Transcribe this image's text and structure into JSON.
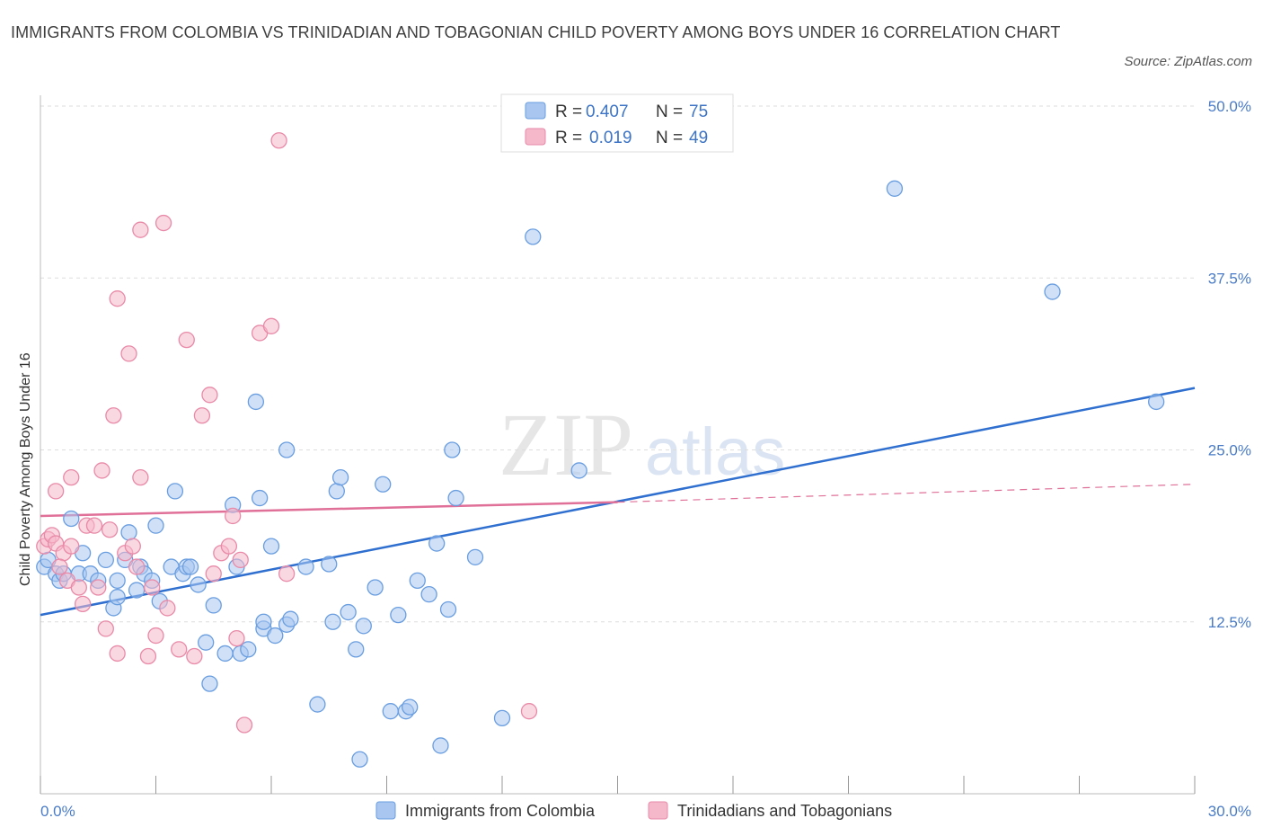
{
  "title": "IMMIGRANTS FROM COLOMBIA VS TRINIDADIAN AND TOBAGONIAN CHILD POVERTY AMONG BOYS UNDER 16 CORRELATION CHART",
  "source": "Source: ZipAtlas.com",
  "watermark": {
    "zip": "ZIP",
    "atlas": "atlas"
  },
  "legend_top": {
    "series1": {
      "r_label": "R = ",
      "r_value": "0.407",
      "n_label": "N = ",
      "n_value": "75"
    },
    "series2": {
      "r_label": "R = ",
      "r_value": "0.019",
      "n_label": "N = ",
      "n_value": "49"
    }
  },
  "colors": {
    "blue_fill": "#a8c6f0",
    "blue_stroke": "#6a9ee0",
    "blue_line": "#2f6fcf",
    "pink_fill": "#f5b8cb",
    "pink_stroke": "#e88aa8",
    "pink_line": "#e07098",
    "grid": "#dddddd",
    "tick_text": "#4a7cc7"
  },
  "chart_data": {
    "type": "scatter",
    "title": "IMMIGRANTS FROM COLOMBIA VS TRINIDADIAN AND TOBAGONIAN CHILD POVERTY AMONG BOYS UNDER 16 CORRELATION CHART",
    "xlabel": "",
    "ylabel": "Child Poverty Among Boys Under 16",
    "xlim": [
      0,
      30
    ],
    "ylim": [
      0,
      50
    ],
    "x_tick_labels": [
      "0.0%",
      "30.0%"
    ],
    "y_tick_labels": [
      "12.5%",
      "25.0%",
      "37.5%",
      "50.0%"
    ],
    "y_ticks": [
      12.5,
      25,
      37.5,
      50
    ],
    "grid": true,
    "legend_placement": "top-center",
    "series": [
      {
        "name": "Immigrants from Colombia",
        "trend": {
          "x": [
            0,
            30
          ],
          "y": [
            13.0,
            29.5
          ]
        },
        "points": [
          [
            0.1,
            16.5
          ],
          [
            0.4,
            16.0
          ],
          [
            0.5,
            15.5
          ],
          [
            0.6,
            16.0
          ],
          [
            0.8,
            20.0
          ],
          [
            1.0,
            16.0
          ],
          [
            1.1,
            17.5
          ],
          [
            1.3,
            16.0
          ],
          [
            1.5,
            15.5
          ],
          [
            1.7,
            17.0
          ],
          [
            1.9,
            13.5
          ],
          [
            2.0,
            15.5
          ],
          [
            2.2,
            17.0
          ],
          [
            2.3,
            19.0
          ],
          [
            2.5,
            14.8
          ],
          [
            2.6,
            16.5
          ],
          [
            2.7,
            16.0
          ],
          [
            2.9,
            15.5
          ],
          [
            3.0,
            19.5
          ],
          [
            3.1,
            14.0
          ],
          [
            3.4,
            16.5
          ],
          [
            3.5,
            22.0
          ],
          [
            3.7,
            16.0
          ],
          [
            3.8,
            16.5
          ],
          [
            3.9,
            16.5
          ],
          [
            4.1,
            15.2
          ],
          [
            4.3,
            11.0
          ],
          [
            4.4,
            8.0
          ],
          [
            4.5,
            13.7
          ],
          [
            4.8,
            10.2
          ],
          [
            5.0,
            21.0
          ],
          [
            5.1,
            16.5
          ],
          [
            5.2,
            10.2
          ],
          [
            5.4,
            10.5
          ],
          [
            5.6,
            28.5
          ],
          [
            5.7,
            21.5
          ],
          [
            5.8,
            12.0
          ],
          [
            6.0,
            18.0
          ],
          [
            6.1,
            11.5
          ],
          [
            6.4,
            25.0
          ],
          [
            6.4,
            12.3
          ],
          [
            6.5,
            12.7
          ],
          [
            6.9,
            16.5
          ],
          [
            7.2,
            6.5
          ],
          [
            7.5,
            16.7
          ],
          [
            7.6,
            12.5
          ],
          [
            7.7,
            22.0
          ],
          [
            7.8,
            23.0
          ],
          [
            8.0,
            13.2
          ],
          [
            8.2,
            10.5
          ],
          [
            8.3,
            2.5
          ],
          [
            8.4,
            12.2
          ],
          [
            8.7,
            15.0
          ],
          [
            8.9,
            22.5
          ],
          [
            9.1,
            6.0
          ],
          [
            9.3,
            13.0
          ],
          [
            9.5,
            6.0
          ],
          [
            9.6,
            6.3
          ],
          [
            9.8,
            15.5
          ],
          [
            10.1,
            14.5
          ],
          [
            10.3,
            18.2
          ],
          [
            10.4,
            3.5
          ],
          [
            10.6,
            13.4
          ],
          [
            10.7,
            25.0
          ],
          [
            10.8,
            21.5
          ],
          [
            11.3,
            17.2
          ],
          [
            12.0,
            5.5
          ],
          [
            12.8,
            40.5
          ],
          [
            14.0,
            23.5
          ],
          [
            22.2,
            44.0
          ],
          [
            26.3,
            36.5
          ],
          [
            29.0,
            28.5
          ],
          [
            0.2,
            17.0
          ],
          [
            2.0,
            14.3
          ],
          [
            5.8,
            12.5
          ]
        ]
      },
      {
        "name": "Trinidadians and Tobagonians",
        "trend": {
          "x": [
            0,
            15
          ],
          "y": [
            20.2,
            21.2
          ]
        },
        "trend_dashed": {
          "x": [
            15,
            30
          ],
          "y": [
            21.2,
            22.5
          ]
        },
        "points": [
          [
            0.1,
            18.0
          ],
          [
            0.2,
            18.5
          ],
          [
            0.3,
            18.8
          ],
          [
            0.4,
            22.0
          ],
          [
            0.4,
            18.2
          ],
          [
            0.6,
            17.5
          ],
          [
            0.7,
            15.5
          ],
          [
            0.8,
            18.0
          ],
          [
            0.8,
            23.0
          ],
          [
            1.0,
            15.0
          ],
          [
            1.1,
            13.8
          ],
          [
            1.2,
            19.5
          ],
          [
            1.4,
            19.5
          ],
          [
            1.5,
            15.0
          ],
          [
            1.6,
            23.5
          ],
          [
            1.7,
            12.0
          ],
          [
            1.8,
            19.2
          ],
          [
            1.9,
            27.5
          ],
          [
            2.0,
            10.2
          ],
          [
            2.0,
            36.0
          ],
          [
            2.2,
            17.5
          ],
          [
            2.3,
            32.0
          ],
          [
            2.4,
            18.0
          ],
          [
            2.5,
            16.5
          ],
          [
            2.6,
            41.0
          ],
          [
            2.6,
            23.0
          ],
          [
            2.8,
            10.0
          ],
          [
            2.9,
            15.0
          ],
          [
            3.0,
            11.5
          ],
          [
            3.2,
            41.5
          ],
          [
            3.3,
            13.5
          ],
          [
            3.6,
            10.5
          ],
          [
            3.8,
            33.0
          ],
          [
            4.0,
            10.0
          ],
          [
            4.2,
            27.5
          ],
          [
            4.4,
            29.0
          ],
          [
            4.5,
            16.0
          ],
          [
            4.7,
            17.5
          ],
          [
            4.9,
            18.0
          ],
          [
            5.0,
            20.2
          ],
          [
            5.1,
            11.3
          ],
          [
            5.2,
            17.0
          ],
          [
            5.3,
            5.0
          ],
          [
            5.7,
            33.5
          ],
          [
            6.0,
            34.0
          ],
          [
            6.2,
            47.5
          ],
          [
            6.4,
            16.0
          ],
          [
            12.7,
            6.0
          ],
          [
            0.5,
            16.5
          ]
        ]
      }
    ]
  },
  "bottom_legend": {
    "item1": "Immigrants from Colombia",
    "item2": "Trinidadians and Tobagonians"
  }
}
